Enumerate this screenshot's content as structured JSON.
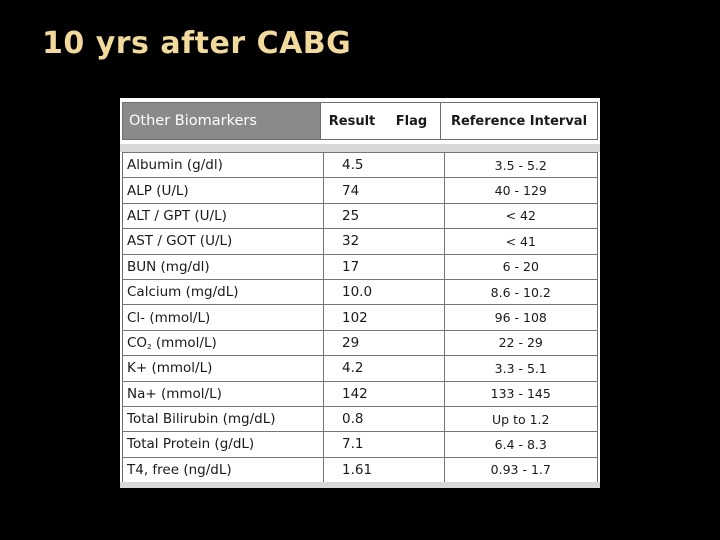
{
  "slide": {
    "title": "10 yrs after CABG"
  },
  "table": {
    "headers": {
      "name": "Other Biomarkers",
      "result": "Result",
      "flag": "Flag",
      "reference": "Reference Interval"
    },
    "rows": [
      {
        "name": "Albumin (g/dl)",
        "result": "4.5",
        "flag": "",
        "reference": "3.5 - 5.2"
      },
      {
        "name": "ALP (U/L)",
        "result": "74",
        "flag": "",
        "reference": "40 - 129"
      },
      {
        "name": "ALT / GPT (U/L)",
        "result": "25",
        "flag": "",
        "reference": "< 42"
      },
      {
        "name": "AST / GOT (U/L)",
        "result": "32",
        "flag": "",
        "reference": "< 41"
      },
      {
        "name": "BUN (mg/dl)",
        "result": "17",
        "flag": "",
        "reference": "6 - 20"
      },
      {
        "name": "Calcium (mg/dL)",
        "result": "10.0",
        "flag": "",
        "reference": "8.6 - 10.2"
      },
      {
        "name": "Cl- (mmol/L)",
        "result": "102",
        "flag": "",
        "reference": "96 - 108"
      },
      {
        "name_main": "CO",
        "name_sub": "2",
        "name_rest": " (mmol/L)",
        "result": "29",
        "flag": "",
        "reference": "22 - 29"
      },
      {
        "name": "K+ (mmol/L)",
        "result": "4.2",
        "flag": "",
        "reference": "3.3 - 5.1"
      },
      {
        "name": "Na+ (mmol/L)",
        "result": "142",
        "flag": "",
        "reference": "133 - 145"
      },
      {
        "name": "Total Bilirubin (mg/dL)",
        "result": "0.8",
        "flag": "",
        "reference": "Up to 1.2"
      },
      {
        "name": "Total Protein (g/dL)",
        "result": "7.1",
        "flag": "",
        "reference": "6.4 - 8.3"
      },
      {
        "name": "T4, free (ng/dL)",
        "result": "1.61",
        "flag": "",
        "reference": "0.93 - 1.7"
      }
    ]
  }
}
